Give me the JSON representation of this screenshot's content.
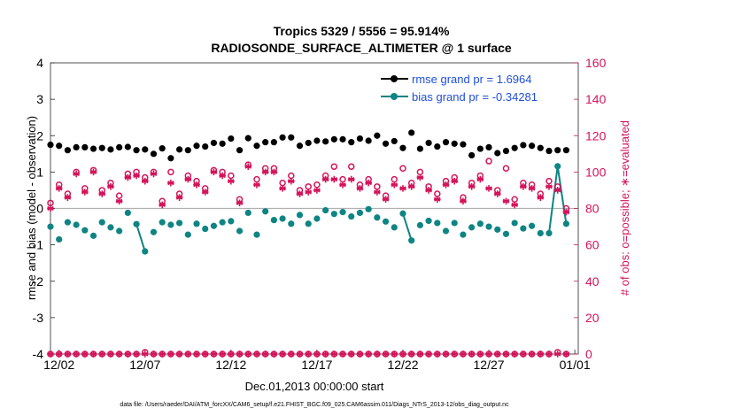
{
  "chart_data": {
    "type": "line",
    "title_line1": "Tropics 5329 / 5556 = 95.914%",
    "title_line2": "RADIOSONDE_SURFACE_ALTIMETER @ 1 surface",
    "ylabel_left": "rmse and bias (model - observation)",
    "ylabel_right": "# of obs: o=possible; ∗=evaluated",
    "xlabel": "Dec.01,2013 00:00:00 start",
    "footer": "data file: /Users/raeder/DAI/ATM_forcXX/CAM6_setup/f.e21.FHIST_BGC.f09_025.CAM6assim.011/Diags_NTrS_2013-12/obs_diag_output.nc",
    "x_ticks": [
      "12/02",
      "12/07",
      "12/12",
      "12/17",
      "12/22",
      "12/27",
      "01/01"
    ],
    "x_tick_days": [
      1,
      6,
      11,
      16,
      21,
      26,
      31
    ],
    "xlim": [
      0.5,
      31.2
    ],
    "ylim_left": [
      -4,
      4
    ],
    "yticks_left": [
      -4,
      -3,
      -2,
      -1,
      0,
      1,
      2,
      3,
      4
    ],
    "ylim_right": [
      0,
      160
    ],
    "yticks_right": [
      0,
      20,
      40,
      60,
      80,
      100,
      120,
      140,
      160
    ],
    "colors": {
      "rmse": "#000000",
      "bias": "#0f8484",
      "obs": "#d4145a",
      "legend_text": "#1e4fd8",
      "zero_line": "#b0b0b0"
    },
    "series": [
      {
        "name": "rmse grand pr = 1.6964",
        "key": "rmse",
        "axis": "left",
        "marker": "filled-circle",
        "connect_consecutive": true,
        "x": [
          0.5,
          1,
          1.5,
          2,
          2.5,
          3,
          3.5,
          4,
          4.5,
          5,
          5.5,
          6,
          6.5,
          7,
          7.5,
          8,
          8.5,
          9,
          9.5,
          10,
          10.5,
          11,
          11.5,
          12,
          12.5,
          13,
          13.5,
          14,
          14.5,
          15,
          15.5,
          16,
          16.5,
          17,
          17.5,
          18,
          18.5,
          19,
          19.5,
          20,
          20.5,
          21,
          21.5,
          22,
          22.5,
          23,
          23.5,
          24,
          24.5,
          25,
          25.5,
          26,
          26.5,
          27,
          27.5,
          28,
          28.5,
          29,
          29.5,
          30,
          30.5
        ],
        "values": [
          1.75,
          1.72,
          1.6,
          1.68,
          1.68,
          1.64,
          1.66,
          1.62,
          1.68,
          1.69,
          1.6,
          1.62,
          1.5,
          1.65,
          1.38,
          1.62,
          1.6,
          1.72,
          1.7,
          1.8,
          1.78,
          1.92,
          1.6,
          1.93,
          1.72,
          1.82,
          1.82,
          1.95,
          1.95,
          1.72,
          1.8,
          1.86,
          1.84,
          1.9,
          1.9,
          1.82,
          1.92,
          1.86,
          2.0,
          1.78,
          1.85,
          1.66,
          2.08,
          1.64,
          1.8,
          1.7,
          1.82,
          1.78,
          1.76,
          1.46,
          1.64,
          1.68,
          1.52,
          1.58,
          1.66,
          1.74,
          1.72,
          1.66,
          1.58,
          1.6,
          1.6
        ]
      },
      {
        "name": "bias grand pr = -0.34281",
        "key": "bias",
        "axis": "left",
        "marker": "filled-circle",
        "connect_consecutive": true,
        "x": [
          0.5,
          1,
          1.5,
          2,
          2.5,
          3,
          3.5,
          4,
          4.5,
          5,
          5.5,
          6,
          6.5,
          7,
          7.5,
          8,
          8.5,
          9,
          9.5,
          10,
          10.5,
          11,
          11.5,
          12,
          12.5,
          13,
          13.5,
          14,
          14.5,
          15,
          15.5,
          16,
          16.5,
          17,
          17.5,
          18,
          18.5,
          19,
          19.5,
          20,
          20.5,
          21,
          21.5,
          22,
          22.5,
          23,
          23.5,
          24,
          24.5,
          25,
          25.5,
          26,
          26.5,
          27,
          27.5,
          28,
          28.5,
          29,
          29.5,
          30,
          30.5
        ],
        "values": [
          -0.5,
          -0.85,
          -0.38,
          -0.45,
          -0.6,
          -0.75,
          -0.38,
          -0.52,
          -0.62,
          -0.12,
          -0.43,
          -1.18,
          -0.65,
          -0.38,
          -0.45,
          -0.4,
          -0.72,
          -0.42,
          -0.56,
          -0.48,
          -0.38,
          -0.35,
          -0.62,
          -0.12,
          -0.72,
          -0.08,
          -0.32,
          -0.28,
          -0.42,
          -0.18,
          -0.42,
          -0.28,
          -0.05,
          -0.15,
          -0.1,
          -0.22,
          -0.12,
          -0.02,
          -0.25,
          -0.36,
          -0.52,
          -0.14,
          -0.88,
          -0.46,
          -0.34,
          -0.4,
          -0.62,
          -0.4,
          -0.72,
          -0.52,
          -0.42,
          -0.5,
          -0.58,
          -0.7,
          -0.4,
          -0.55,
          -0.48,
          -0.68,
          -0.68,
          1.16,
          -0.42
        ]
      },
      {
        "name": "obs possible",
        "key": "possible",
        "axis": "right",
        "marker": "open-circle",
        "connect_consecutive": false,
        "x": [
          0.5,
          1,
          1.5,
          2,
          2.5,
          3,
          3.5,
          4,
          4.5,
          5,
          5.5,
          6,
          6.5,
          7,
          7.5,
          8,
          8.5,
          9,
          9.5,
          10,
          10.5,
          11,
          11.5,
          12,
          12.5,
          13,
          13.5,
          14,
          14.5,
          15,
          15.5,
          16,
          16.5,
          17,
          17.5,
          18,
          18.5,
          19,
          19.5,
          20,
          20.5,
          21,
          21.5,
          22,
          22.5,
          23,
          23.5,
          24,
          24.5,
          25,
          25.5,
          26,
          26.5,
          27,
          27.5,
          28,
          28.5,
          29,
          29.5,
          30,
          30.5
        ],
        "values": [
          83,
          93,
          88,
          100,
          91,
          101,
          90,
          94,
          87,
          99,
          100,
          97,
          100,
          84,
          100,
          88,
          98,
          95,
          91,
          101,
          100,
          98,
          85,
          104,
          96,
          102,
          102,
          94,
          98,
          90,
          92,
          93,
          98,
          103,
          96,
          103,
          93,
          96,
          92,
          87,
          96,
          102,
          94,
          100,
          92,
          88,
          95,
          97,
          86,
          94,
          98,
          106,
          90,
          102,
          85,
          94,
          93,
          88,
          95,
          92,
          80
        ]
      },
      {
        "name": "obs evaluated",
        "key": "evaluated",
        "axis": "right",
        "marker": "star",
        "connect_consecutive": false,
        "x": [
          0.5,
          1,
          1.5,
          2,
          2.5,
          3,
          3.5,
          4,
          4.5,
          5,
          5.5,
          6,
          6.5,
          7,
          7.5,
          8,
          8.5,
          9,
          9.5,
          10,
          10.5,
          11,
          11.5,
          12,
          12.5,
          13,
          13.5,
          14,
          14.5,
          15,
          15.5,
          16,
          16.5,
          17,
          17.5,
          18,
          18.5,
          19,
          19.5,
          20,
          20.5,
          21,
          21.5,
          22,
          22.5,
          23,
          23.5,
          24,
          24.5,
          25,
          25.5,
          26,
          26.5,
          27,
          27.5,
          28,
          28.5,
          29,
          29.5,
          30,
          30.5
        ],
        "values": [
          80,
          91,
          86,
          99,
          89,
          100,
          88,
          92,
          84,
          97,
          98,
          95,
          99,
          82,
          94,
          86,
          96,
          93,
          89,
          100,
          98,
          95,
          83,
          103,
          93,
          100,
          100,
          91,
          95,
          88,
          89,
          90,
          96,
          96,
          93,
          96,
          91,
          94,
          89,
          85,
          93,
          91,
          92,
          97,
          90,
          85,
          93,
          95,
          84,
          92,
          96,
          91,
          88,
          84,
          82,
          92,
          91,
          86,
          92,
          90,
          78
        ]
      },
      {
        "name": "obs possible (bottom)",
        "key": "possible_bottom",
        "axis": "right",
        "marker": "open-circle",
        "connect_consecutive": false,
        "x": [
          0.5,
          1,
          1.5,
          2,
          2.5,
          3,
          3.5,
          4,
          4.5,
          5,
          5.5,
          6,
          6.5,
          7,
          7.5,
          8,
          8.5,
          9,
          9.5,
          10,
          10.5,
          11,
          11.5,
          12,
          12.5,
          13,
          13.5,
          14,
          14.5,
          15,
          15.5,
          16,
          16.5,
          17,
          17.5,
          18,
          18.5,
          19,
          19.5,
          20,
          20.5,
          21,
          21.5,
          22,
          22.5,
          23,
          23.5,
          24,
          24.5,
          25,
          25.5,
          26,
          26.5,
          27,
          27.5,
          28,
          28.5,
          29,
          29.5,
          30,
          30.5
        ],
        "values": [
          0,
          0,
          0,
          0,
          0,
          0,
          0,
          0,
          0,
          0,
          0,
          1,
          0,
          0,
          0,
          0,
          0,
          0,
          0,
          0,
          0,
          0,
          0,
          0,
          0,
          0,
          0,
          0,
          0,
          0,
          0,
          0,
          0,
          0,
          0,
          0,
          0,
          0,
          0,
          0,
          0,
          0,
          0,
          0,
          0,
          0,
          0,
          0,
          0,
          0,
          0,
          0,
          0,
          0,
          0,
          0,
          0,
          0,
          0,
          1,
          0
        ]
      },
      {
        "name": "obs evaluated (bottom)",
        "key": "evaluated_bottom",
        "axis": "right",
        "marker": "star",
        "connect_consecutive": false,
        "x": [
          0.5,
          1,
          1.5,
          2,
          2.5,
          3,
          3.5,
          4,
          4.5,
          5,
          5.5,
          6,
          6.5,
          7,
          7.5,
          8,
          8.5,
          9,
          9.5,
          10,
          10.5,
          11,
          11.5,
          12,
          12.5,
          13,
          13.5,
          14,
          14.5,
          15,
          15.5,
          16,
          16.5,
          17,
          17.5,
          18,
          18.5,
          19,
          19.5,
          20,
          20.5,
          21,
          21.5,
          22,
          22.5,
          23,
          23.5,
          24,
          24.5,
          25,
          25.5,
          26,
          26.5,
          27,
          27.5,
          28,
          28.5,
          29,
          29.5,
          30,
          30.5
        ],
        "values": [
          0,
          0,
          0,
          0,
          0,
          0,
          0,
          0,
          0,
          0,
          0,
          0,
          0,
          0,
          0,
          0,
          0,
          0,
          0,
          0,
          0,
          0,
          0,
          0,
          0,
          0,
          0,
          0,
          0,
          0,
          0,
          0,
          0,
          0,
          0,
          0,
          0,
          0,
          0,
          0,
          0,
          0,
          0,
          0,
          0,
          0,
          0,
          0,
          0,
          0,
          0,
          0,
          0,
          0,
          0,
          0,
          0,
          0,
          0,
          0,
          0
        ]
      }
    ],
    "legend": [
      {
        "label": "rmse grand pr = 1.6964",
        "key": "rmse"
      },
      {
        "label": "bias grand pr = -0.34281",
        "key": "bias"
      }
    ]
  }
}
